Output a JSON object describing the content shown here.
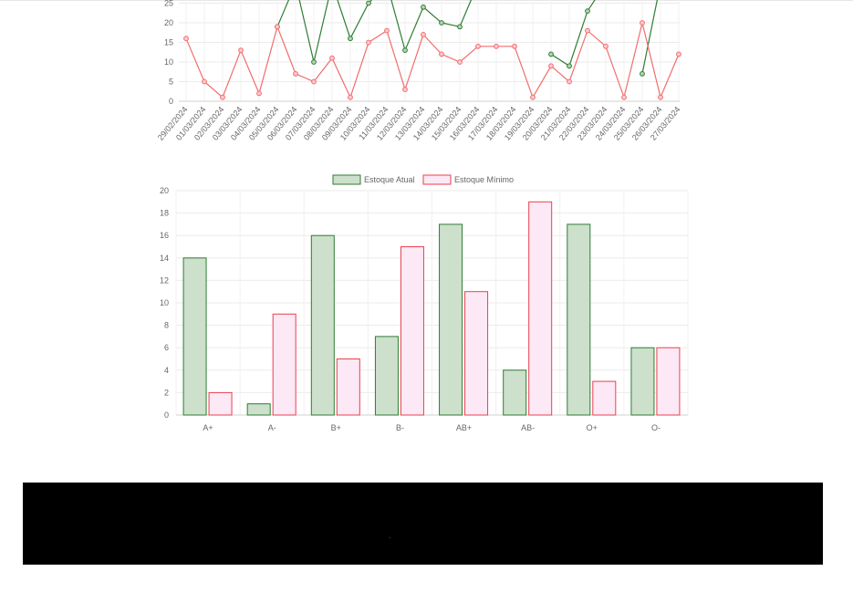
{
  "chart_data": [
    {
      "type": "line",
      "x": [
        "29/02/2024",
        "01/03/2024",
        "02/03/2024",
        "03/03/2024",
        "04/03/2024",
        "05/03/2024",
        "06/03/2024",
        "07/03/2024",
        "08/03/2024",
        "09/03/2024",
        "10/03/2024",
        "11/03/2024",
        "12/03/2024",
        "13/03/2024",
        "14/03/2024",
        "15/03/2024",
        "16/03/2024",
        "17/03/2024",
        "18/03/2024",
        "19/03/2024",
        "20/03/2024",
        "21/03/2024",
        "22/03/2024",
        "23/03/2024",
        "24/03/2024",
        "25/03/2024",
        "26/03/2024",
        "27/03/2024"
      ],
      "series": [
        {
          "color": "#2e7d32",
          "values": [
            null,
            null,
            null,
            null,
            null,
            19,
            30,
            10,
            30,
            16,
            25,
            30,
            13,
            24,
            20,
            19,
            30,
            null,
            null,
            null,
            12,
            9,
            23,
            30,
            null,
            7,
            30,
            null
          ]
        },
        {
          "color": "#f26d6d",
          "values": [
            16,
            5,
            1,
            13,
            2,
            19,
            7,
            5,
            11,
            1,
            15,
            18,
            3,
            17,
            12,
            10,
            14,
            14,
            14,
            1,
            9,
            5,
            18,
            14,
            1,
            20,
            1,
            12
          ]
        }
      ],
      "yticks": [
        0,
        5,
        10,
        15,
        20,
        25
      ],
      "ylim": [
        0,
        25
      ]
    },
    {
      "type": "bar",
      "categories": [
        "A+",
        "A-",
        "B+",
        "B-",
        "AB+",
        "AB-",
        "O+",
        "O-"
      ],
      "series": [
        {
          "name": "Estoque Atual",
          "values": [
            14,
            1,
            16,
            7,
            17,
            4,
            17,
            6
          ],
          "fill": "#cce0cc",
          "stroke": "#2e7d32"
        },
        {
          "name": "Estoque Mínimo",
          "values": [
            2,
            9,
            5,
            15,
            11,
            19,
            3,
            6
          ],
          "fill": "#fde8f5",
          "stroke": "#e8404f"
        }
      ],
      "yticks": [
        0,
        2,
        4,
        6,
        8,
        10,
        12,
        14,
        16,
        18,
        20
      ],
      "ylim": [
        0,
        20
      ]
    }
  ],
  "footer": {
    "text": "-"
  }
}
